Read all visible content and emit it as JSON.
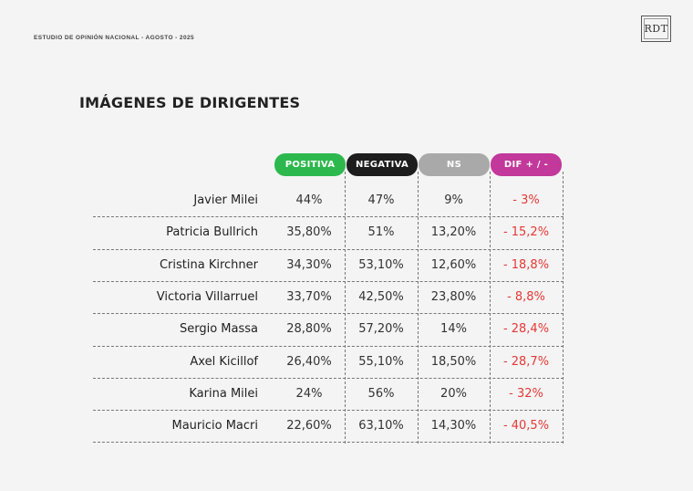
{
  "header": {
    "study_label": "ESTUDIO DE OPINIÓN NACIONAL - AGOSTO - 2025",
    "logo_text": "RDT"
  },
  "title": "IMÁGENES DE DIRIGENTES",
  "columns": [
    {
      "label": "POSITIVA",
      "color": "#2db84d"
    },
    {
      "label": "NEGATIVA",
      "color": "#1d1d1d"
    },
    {
      "label": "NS",
      "color": "#a9a9a9"
    },
    {
      "label": "DIF + / -",
      "color": "#c2389b"
    }
  ],
  "rows": [
    {
      "name": "Javier Milei",
      "positiva": "44%",
      "negativa": "47%",
      "ns": "9%",
      "dif": "- 3%"
    },
    {
      "name": "Patricia Bullrich",
      "positiva": "35,80%",
      "negativa": "51%",
      "ns": "13,20%",
      "dif": "- 15,2%"
    },
    {
      "name": "Cristina Kirchner",
      "positiva": "34,30%",
      "negativa": "53,10%",
      "ns": "12,60%",
      "dif": "- 18,8%"
    },
    {
      "name": "Victoria Villarruel",
      "positiva": "33,70%",
      "negativa": "42,50%",
      "ns": "23,80%",
      "dif": "- 8,8%"
    },
    {
      "name": "Sergio Massa",
      "positiva": "28,80%",
      "negativa": "57,20%",
      "ns": "14%",
      "dif": "- 28,4%"
    },
    {
      "name": "Axel Kicillof",
      "positiva": "26,40%",
      "negativa": "55,10%",
      "ns": "18,50%",
      "dif": "- 28,7%"
    },
    {
      "name": "Karina Milei",
      "positiva": "24%",
      "negativa": "56%",
      "ns": "20%",
      "dif": "- 32%"
    },
    {
      "name": "Mauricio Macri",
      "positiva": "22,60%",
      "negativa": "63,10%",
      "ns": "14,30%",
      "dif": "- 40,5%"
    }
  ]
}
